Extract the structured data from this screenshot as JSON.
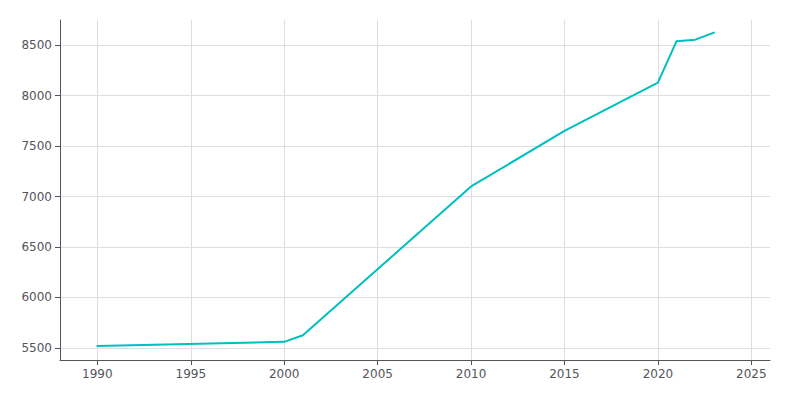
{
  "chart_data": {
    "type": "line",
    "x": [
      1990,
      2000,
      2001,
      2010,
      2015,
      2020,
      2021,
      2022,
      2023
    ],
    "values": [
      5520,
      5560,
      5625,
      7100,
      7650,
      8130,
      8540,
      8555,
      8625
    ],
    "color": "#00BFBF",
    "xlim": [
      1988,
      2026
    ],
    "ylim": [
      5380,
      8750
    ],
    "xticks": [
      1990,
      1995,
      2000,
      2005,
      2010,
      2015,
      2020,
      2025
    ],
    "yticks": [
      5500,
      6000,
      6500,
      7000,
      7500,
      8000,
      8500
    ],
    "grid": true
  }
}
